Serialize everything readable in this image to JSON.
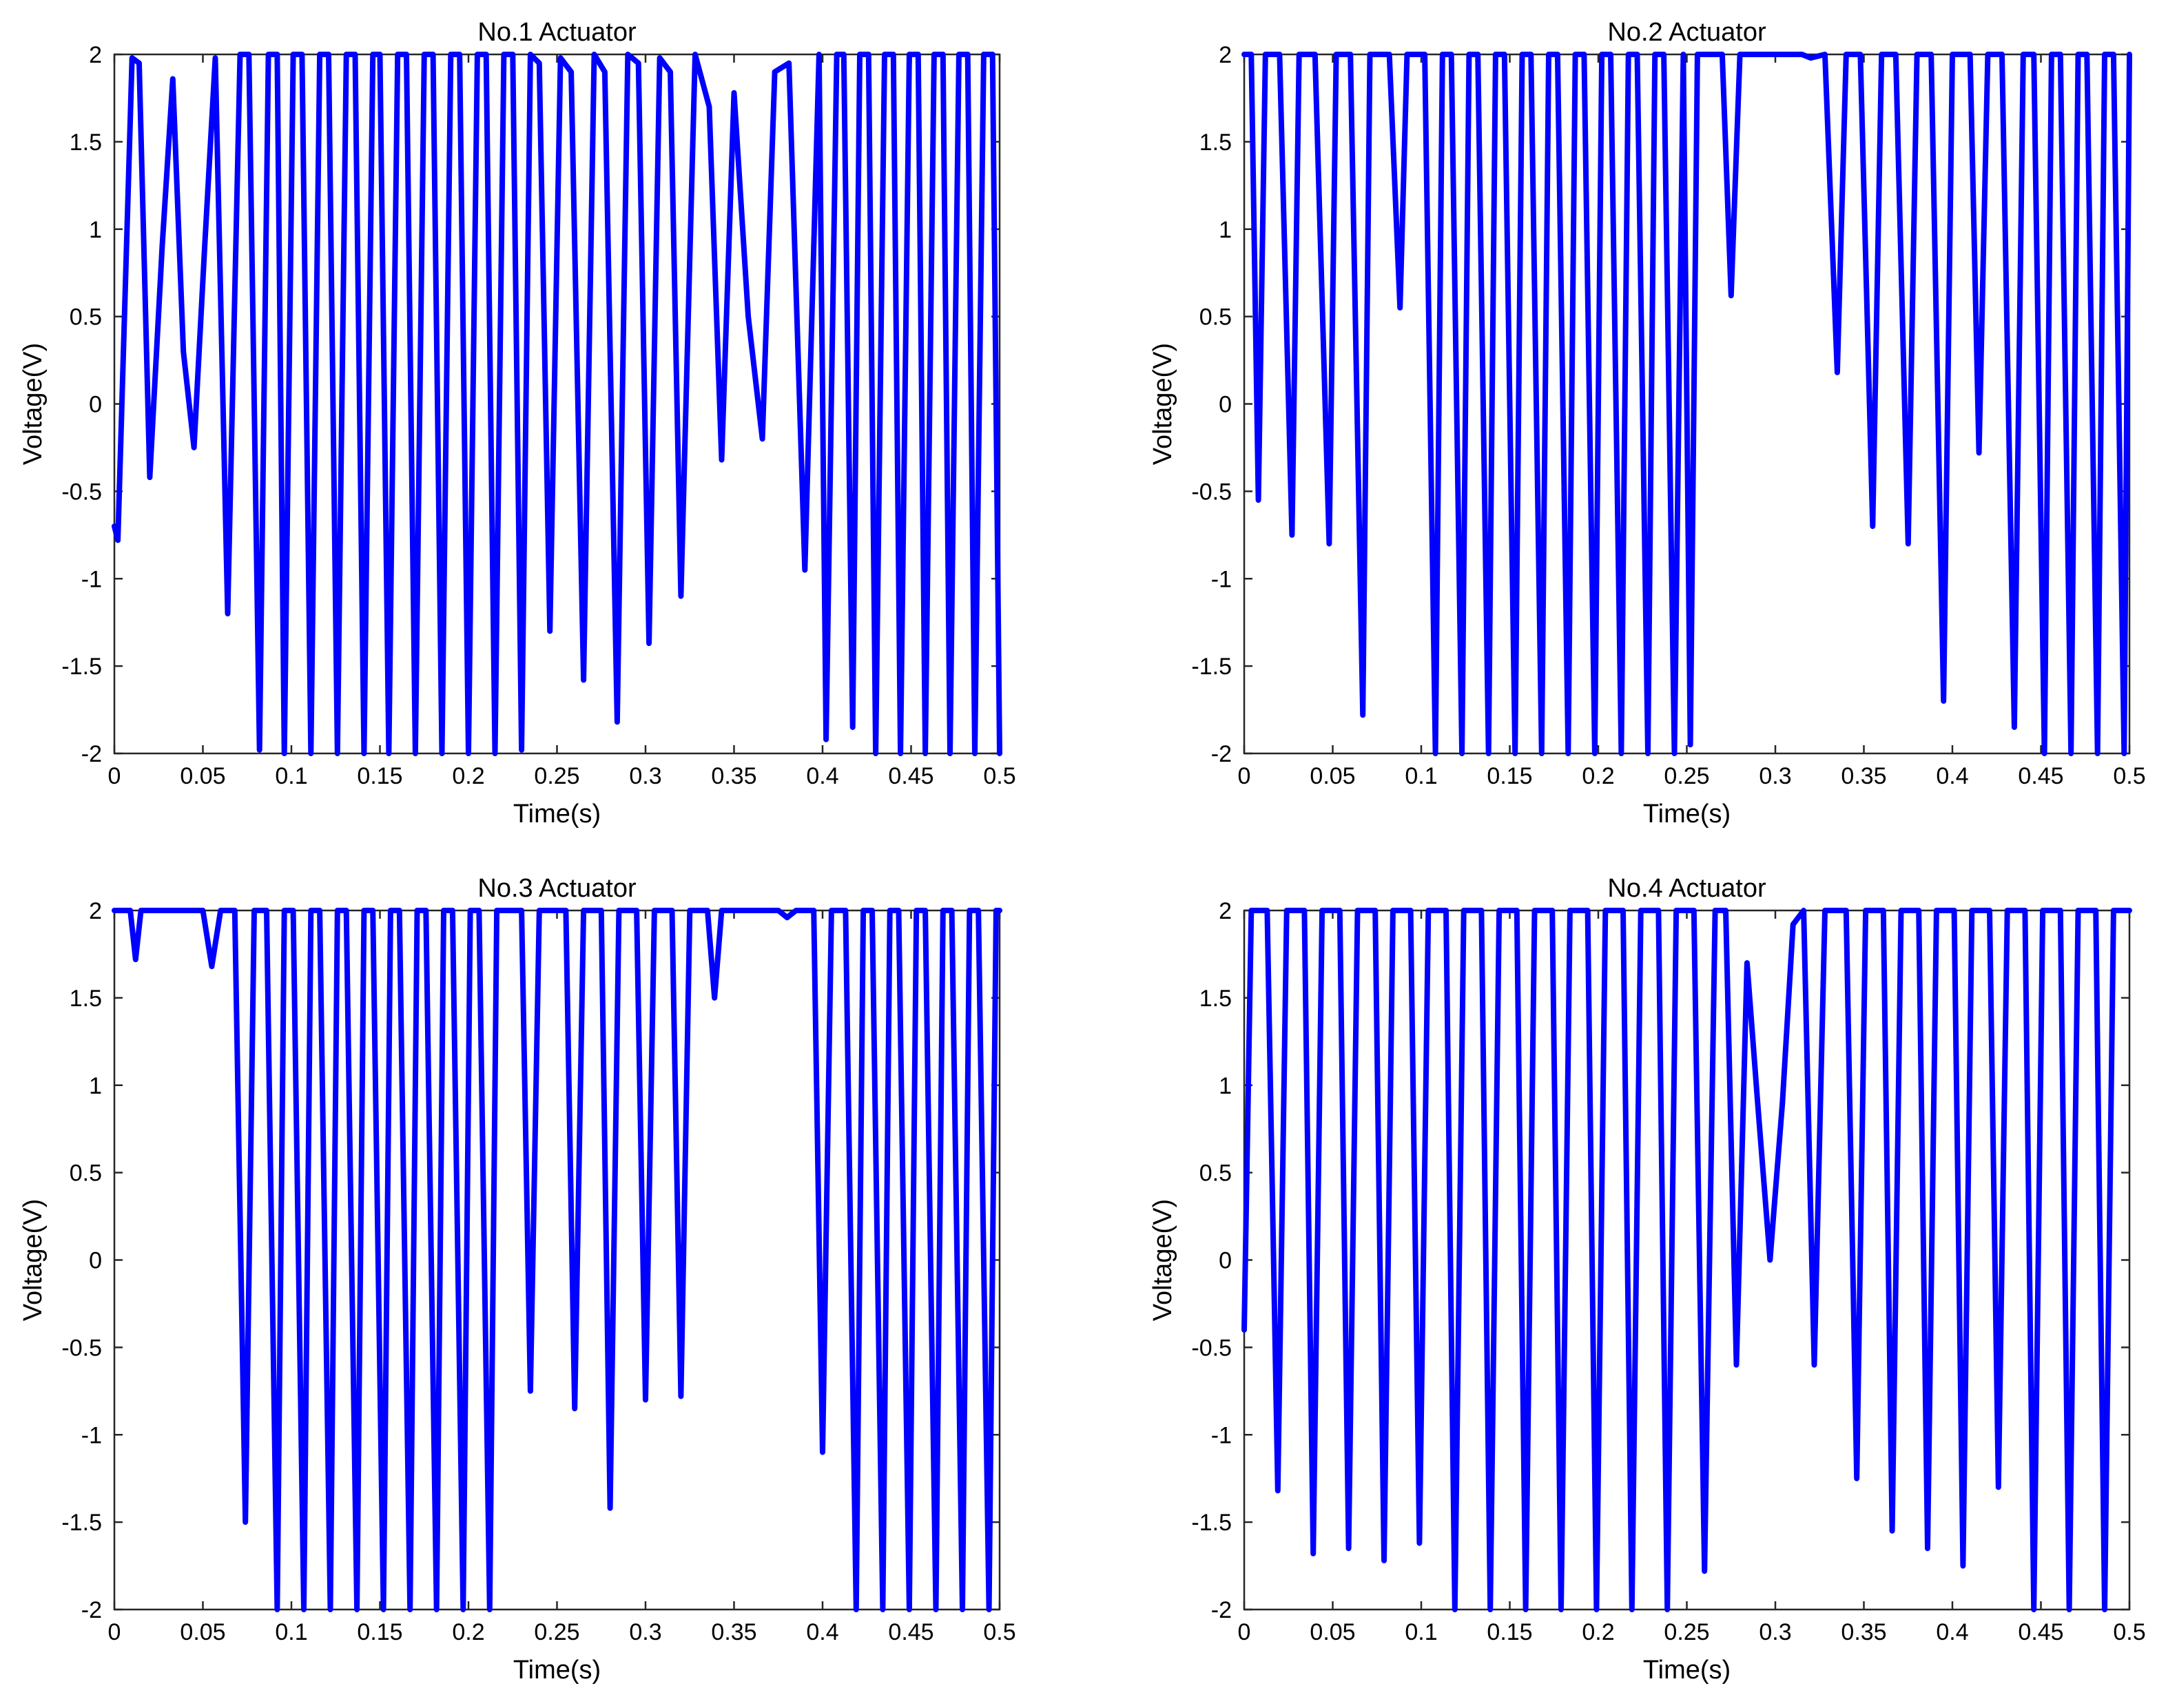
{
  "chart_data": [
    {
      "type": "line",
      "title": "No.1 Actuator",
      "xlabel": "Time(s)",
      "ylabel": "Voltage(V)",
      "xlim": [
        0,
        0.5
      ],
      "ylim": [
        -2,
        2
      ],
      "xticks": [
        "0",
        "0.05",
        "0.1",
        "0.15",
        "0.2",
        "0.25",
        "0.3",
        "0.35",
        "0.4",
        "0.45",
        "0.5"
      ],
      "yticks": [
        "2",
        "1.5",
        "1",
        "0.5",
        "0",
        "-0.5",
        "-1",
        "-1.5",
        "-2"
      ],
      "color": "#0000ff",
      "series": [
        {
          "name": "No.1 Actuator",
          "x": [
            0,
            0.002,
            0.006,
            0.01,
            0.014,
            0.02,
            0.027,
            0.033,
            0.039,
            0.045,
            0.051,
            0.057,
            0.064,
            0.071,
            0.076,
            0.082,
            0.087,
            0.092,
            0.096,
            0.101,
            0.106,
            0.111,
            0.116,
            0.121,
            0.126,
            0.131,
            0.136,
            0.141,
            0.146,
            0.15,
            0.155,
            0.16,
            0.165,
            0.17,
            0.175,
            0.18,
            0.185,
            0.19,
            0.195,
            0.2,
            0.205,
            0.21,
            0.215,
            0.22,
            0.225,
            0.23,
            0.235,
            0.24,
            0.246,
            0.252,
            0.258,
            0.265,
            0.271,
            0.277,
            0.284,
            0.29,
            0.296,
            0.302,
            0.308,
            0.314,
            0.32,
            0.328,
            0.336,
            0.343,
            0.35,
            0.358,
            0.366,
            0.373,
            0.381,
            0.39,
            0.398,
            0.402,
            0.408,
            0.412,
            0.417,
            0.421,
            0.426,
            0.43,
            0.435,
            0.44,
            0.444,
            0.449,
            0.454,
            0.458,
            0.463,
            0.468,
            0.472,
            0.477,
            0.482,
            0.486,
            0.491,
            0.496,
            0.5
          ],
          "values": [
            -0.7,
            -0.78,
            0.6,
            1.98,
            1.95,
            -0.42,
            0.9,
            1.86,
            0.3,
            -0.25,
            0.9,
            1.98,
            -1.2,
            2,
            2,
            -1.98,
            2,
            2,
            -2,
            2,
            2,
            -2,
            2,
            2,
            -2,
            2,
            2,
            -2,
            2,
            2,
            -2,
            2,
            2,
            -2,
            2,
            2,
            -2,
            2,
            2,
            -2,
            2,
            2,
            -2,
            2,
            2,
            -1.98,
            2,
            1.95,
            -1.3,
            1.98,
            1.9,
            -1.58,
            2,
            1.9,
            -1.82,
            2,
            1.95,
            -1.37,
            1.98,
            1.9,
            -1.1,
            2,
            1.7,
            -0.32,
            1.78,
            0.5,
            -0.2,
            1.9,
            1.95,
            -0.95,
            2,
            -1.92,
            2,
            2,
            -1.85,
            2,
            2,
            -2,
            2,
            2,
            -2,
            2,
            2,
            -2,
            2,
            2,
            -2,
            2,
            2,
            -2,
            2,
            2,
            -2
          ]
        }
      ]
    },
    {
      "type": "line",
      "title": "No.2 Actuator",
      "xlabel": "Time(s)",
      "ylabel": "Voltage(V)",
      "xlim": [
        0,
        0.5
      ],
      "ylim": [
        -2,
        2
      ],
      "xticks": [
        "0",
        "0.05",
        "0.1",
        "0.15",
        "0.2",
        "0.25",
        "0.3",
        "0.35",
        "0.4",
        "0.45",
        "0.5"
      ],
      "yticks": [
        "2",
        "1.5",
        "1",
        "0.5",
        "0",
        "-0.5",
        "-1",
        "-1.5",
        "-2"
      ],
      "color": "#0000ff",
      "series": [
        {
          "name": "No.2 Actuator",
          "x": [
            0,
            0.004,
            0.008,
            0.012,
            0.02,
            0.027,
            0.031,
            0.04,
            0.048,
            0.052,
            0.06,
            0.067,
            0.071,
            0.082,
            0.088,
            0.092,
            0.102,
            0.108,
            0.112,
            0.117,
            0.123,
            0.127,
            0.132,
            0.138,
            0.142,
            0.147,
            0.153,
            0.157,
            0.162,
            0.168,
            0.172,
            0.177,
            0.183,
            0.187,
            0.192,
            0.198,
            0.202,
            0.207,
            0.213,
            0.217,
            0.222,
            0.228,
            0.232,
            0.237,
            0.243,
            0.248,
            0.252,
            0.256,
            0.26,
            0.27,
            0.275,
            0.28,
            0.3,
            0.315,
            0.32,
            0.328,
            0.335,
            0.34,
            0.348,
            0.355,
            0.36,
            0.368,
            0.375,
            0.38,
            0.388,
            0.395,
            0.4,
            0.41,
            0.415,
            0.42,
            0.428,
            0.435,
            0.44,
            0.446,
            0.452,
            0.456,
            0.461,
            0.467,
            0.471,
            0.476,
            0.482,
            0.486,
            0.491,
            0.497,
            0.5
          ],
          "values": [
            2,
            2,
            -0.55,
            2,
            2,
            -0.75,
            2,
            2,
            -0.8,
            2,
            2,
            -1.78,
            2,
            2,
            0.55,
            2,
            2,
            -2,
            2,
            2,
            -2,
            2,
            2,
            -2,
            2,
            2,
            -2,
            2,
            2,
            -2,
            2,
            2,
            -2,
            2,
            2,
            -2,
            2,
            2,
            -2,
            2,
            2,
            -2,
            2,
            2,
            -2,
            2,
            -1.95,
            2,
            2,
            2,
            0.62,
            2,
            2,
            2,
            1.98,
            2,
            0.18,
            2,
            2,
            -0.7,
            2,
            2,
            -0.8,
            2,
            2,
            -1.7,
            2,
            2,
            -0.28,
            2,
            2,
            -1.85,
            2,
            2,
            -2,
            2,
            2,
            -2,
            2,
            2,
            -2,
            2,
            2,
            -2,
            2
          ]
        }
      ]
    },
    {
      "type": "line",
      "title": "No.3 Actuator",
      "xlabel": "Time(s)",
      "ylabel": "Voltage(V)",
      "xlim": [
        0,
        0.5
      ],
      "ylim": [
        -2,
        2
      ],
      "xticks": [
        "0",
        "0.05",
        "0.1",
        "0.15",
        "0.2",
        "0.25",
        "0.3",
        "0.35",
        "0.4",
        "0.45",
        "0.5"
      ],
      "yticks": [
        "2",
        "1.5",
        "1",
        "0.5",
        "0",
        "-0.5",
        "-1",
        "-1.5",
        "-2"
      ],
      "color": "#0000ff",
      "series": [
        {
          "name": "No.3 Actuator",
          "x": [
            0,
            0.009,
            0.012,
            0.015,
            0.05,
            0.055,
            0.06,
            0.068,
            0.074,
            0.079,
            0.086,
            0.092,
            0.096,
            0.101,
            0.107,
            0.111,
            0.116,
            0.122,
            0.126,
            0.131,
            0.137,
            0.141,
            0.146,
            0.152,
            0.156,
            0.161,
            0.167,
            0.171,
            0.176,
            0.182,
            0.186,
            0.191,
            0.197,
            0.201,
            0.206,
            0.212,
            0.216,
            0.221,
            0.225,
            0.23,
            0.235,
            0.24,
            0.245,
            0.255,
            0.26,
            0.265,
            0.275,
            0.28,
            0.285,
            0.295,
            0.3,
            0.305,
            0.315,
            0.32,
            0.325,
            0.335,
            0.339,
            0.343,
            0.375,
            0.38,
            0.385,
            0.395,
            0.4,
            0.405,
            0.413,
            0.419,
            0.423,
            0.428,
            0.434,
            0.438,
            0.443,
            0.449,
            0.453,
            0.458,
            0.464,
            0.468,
            0.473,
            0.479,
            0.483,
            0.488,
            0.494,
            0.498,
            0.5
          ],
          "values": [
            2,
            2,
            1.72,
            2,
            2,
            1.68,
            2,
            2,
            -1.5,
            2,
            2,
            -2,
            2,
            2,
            -2,
            2,
            2,
            -2,
            2,
            2,
            -2,
            2,
            2,
            -2,
            2,
            2,
            -2,
            2,
            2,
            -2,
            2,
            2,
            -2,
            2,
            2,
            -2,
            2,
            2,
            2,
            2,
            -0.75,
            2,
            2,
            2,
            -0.85,
            2,
            2,
            -1.42,
            2,
            2,
            -0.8,
            2,
            2,
            -0.78,
            2,
            2,
            1.5,
            2,
            2,
            1.96,
            2,
            2,
            -1.1,
            2,
            2,
            -2,
            2,
            2,
            -2,
            2,
            2,
            -2,
            2,
            2,
            -2,
            2,
            2,
            -2,
            2,
            2,
            -2,
            2,
            2
          ]
        }
      ]
    },
    {
      "type": "line",
      "title": "No.4 Actuator",
      "xlabel": "Time(s)",
      "ylabel": "Voltage(V)",
      "xlim": [
        0,
        0.5
      ],
      "ylim": [
        -2,
        2
      ],
      "xticks": [
        "0",
        "0.05",
        "0.1",
        "0.15",
        "0.2",
        "0.25",
        "0.3",
        "0.35",
        "0.4",
        "0.45",
        "0.5"
      ],
      "yticks": [
        "2",
        "1.5",
        "1",
        "0.5",
        "0",
        "-0.5",
        "-1",
        "-1.5",
        "-2"
      ],
      "color": "#0000ff",
      "series": [
        {
          "name": "No.4 Actuator",
          "x": [
            0,
            0.004,
            0.008,
            0.013,
            0.019,
            0.024,
            0.029,
            0.034,
            0.039,
            0.044,
            0.049,
            0.054,
            0.059,
            0.064,
            0.069,
            0.074,
            0.079,
            0.084,
            0.089,
            0.094,
            0.099,
            0.104,
            0.109,
            0.114,
            0.119,
            0.124,
            0.129,
            0.134,
            0.139,
            0.144,
            0.149,
            0.154,
            0.159,
            0.164,
            0.169,
            0.174,
            0.179,
            0.184,
            0.189,
            0.194,
            0.199,
            0.204,
            0.209,
            0.214,
            0.219,
            0.224,
            0.229,
            0.234,
            0.239,
            0.244,
            0.249,
            0.254,
            0.26,
            0.266,
            0.272,
            0.278,
            0.284,
            0.29,
            0.297,
            0.304,
            0.31,
            0.316,
            0.322,
            0.328,
            0.334,
            0.34,
            0.346,
            0.351,
            0.356,
            0.361,
            0.366,
            0.371,
            0.376,
            0.381,
            0.386,
            0.391,
            0.396,
            0.401,
            0.406,
            0.411,
            0.416,
            0.421,
            0.426,
            0.431,
            0.436,
            0.441,
            0.446,
            0.451,
            0.456,
            0.461,
            0.466,
            0.471,
            0.476,
            0.481,
            0.486,
            0.491,
            0.496,
            0.5
          ],
          "values": [
            -0.4,
            2,
            2,
            2,
            -1.32,
            2,
            2,
            2,
            -1.68,
            2,
            2,
            2,
            -1.65,
            2,
            2,
            2,
            -1.72,
            2,
            2,
            2,
            -1.62,
            2,
            2,
            2,
            -2,
            2,
            2,
            2,
            -2,
            2,
            2,
            2,
            -2,
            2,
            2,
            2,
            -2,
            2,
            2,
            2,
            -2,
            2,
            2,
            2,
            -2,
            2,
            2,
            2,
            -2,
            2,
            2,
            2,
            -1.78,
            2,
            2,
            -0.6,
            1.7,
            0.9,
            0.0,
            0.9,
            1.92,
            2,
            -0.6,
            2,
            2,
            2,
            -1.25,
            2,
            2,
            2,
            -1.55,
            2,
            2,
            2,
            -1.65,
            2,
            2,
            2,
            -1.75,
            2,
            2,
            2,
            -1.3,
            2,
            2,
            2,
            -2,
            2,
            2,
            2,
            -2,
            2,
            2,
            2,
            -2,
            2,
            2,
            2
          ]
        }
      ]
    }
  ]
}
